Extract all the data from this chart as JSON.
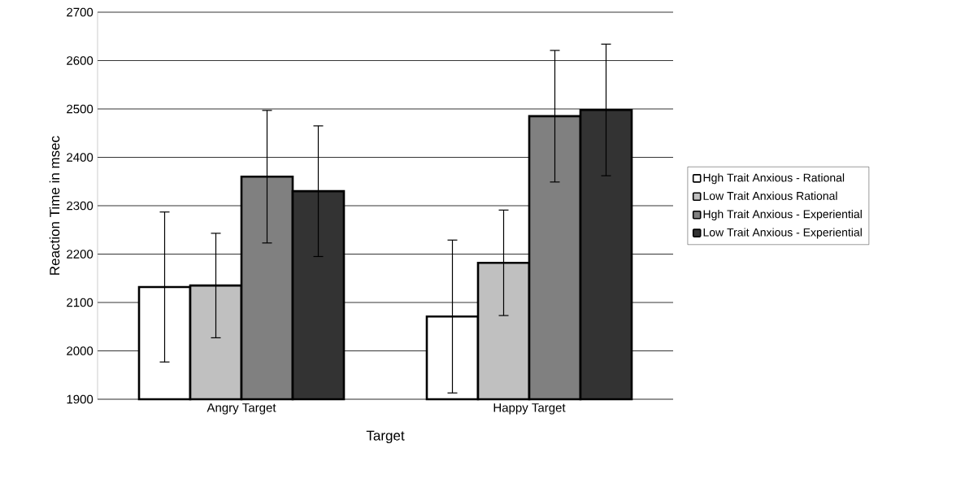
{
  "chart_data": {
    "type": "bar",
    "xlabel": "Target",
    "ylabel": "Reaction Time in msec",
    "categories": [
      "Angry Target",
      "Happy Target"
    ],
    "series": [
      {
        "name": "Hgh Trait Anxious - Rational",
        "color": "#ffffff",
        "values": [
          2132,
          2071
        ],
        "errors": [
          155,
          158
        ]
      },
      {
        "name": "Low Trait Anxious Rational",
        "color": "#c0c0c0",
        "values": [
          2135,
          2182
        ],
        "errors": [
          108,
          109
        ]
      },
      {
        "name": "Hgh Trait Anxious - Experiential",
        "color": "#808080",
        "values": [
          2360,
          2485
        ],
        "errors": [
          137,
          136
        ]
      },
      {
        "name": "Low Trait Anxious - Experiential",
        "color": "#333333",
        "values": [
          2330,
          2498
        ],
        "errors": [
          135,
          136
        ]
      }
    ],
    "ylim": [
      1900,
      2700
    ],
    "yticks": [
      1900,
      2000,
      2100,
      2200,
      2300,
      2400,
      2500,
      2600,
      2700
    ],
    "grid": "y",
    "legend": "right"
  }
}
